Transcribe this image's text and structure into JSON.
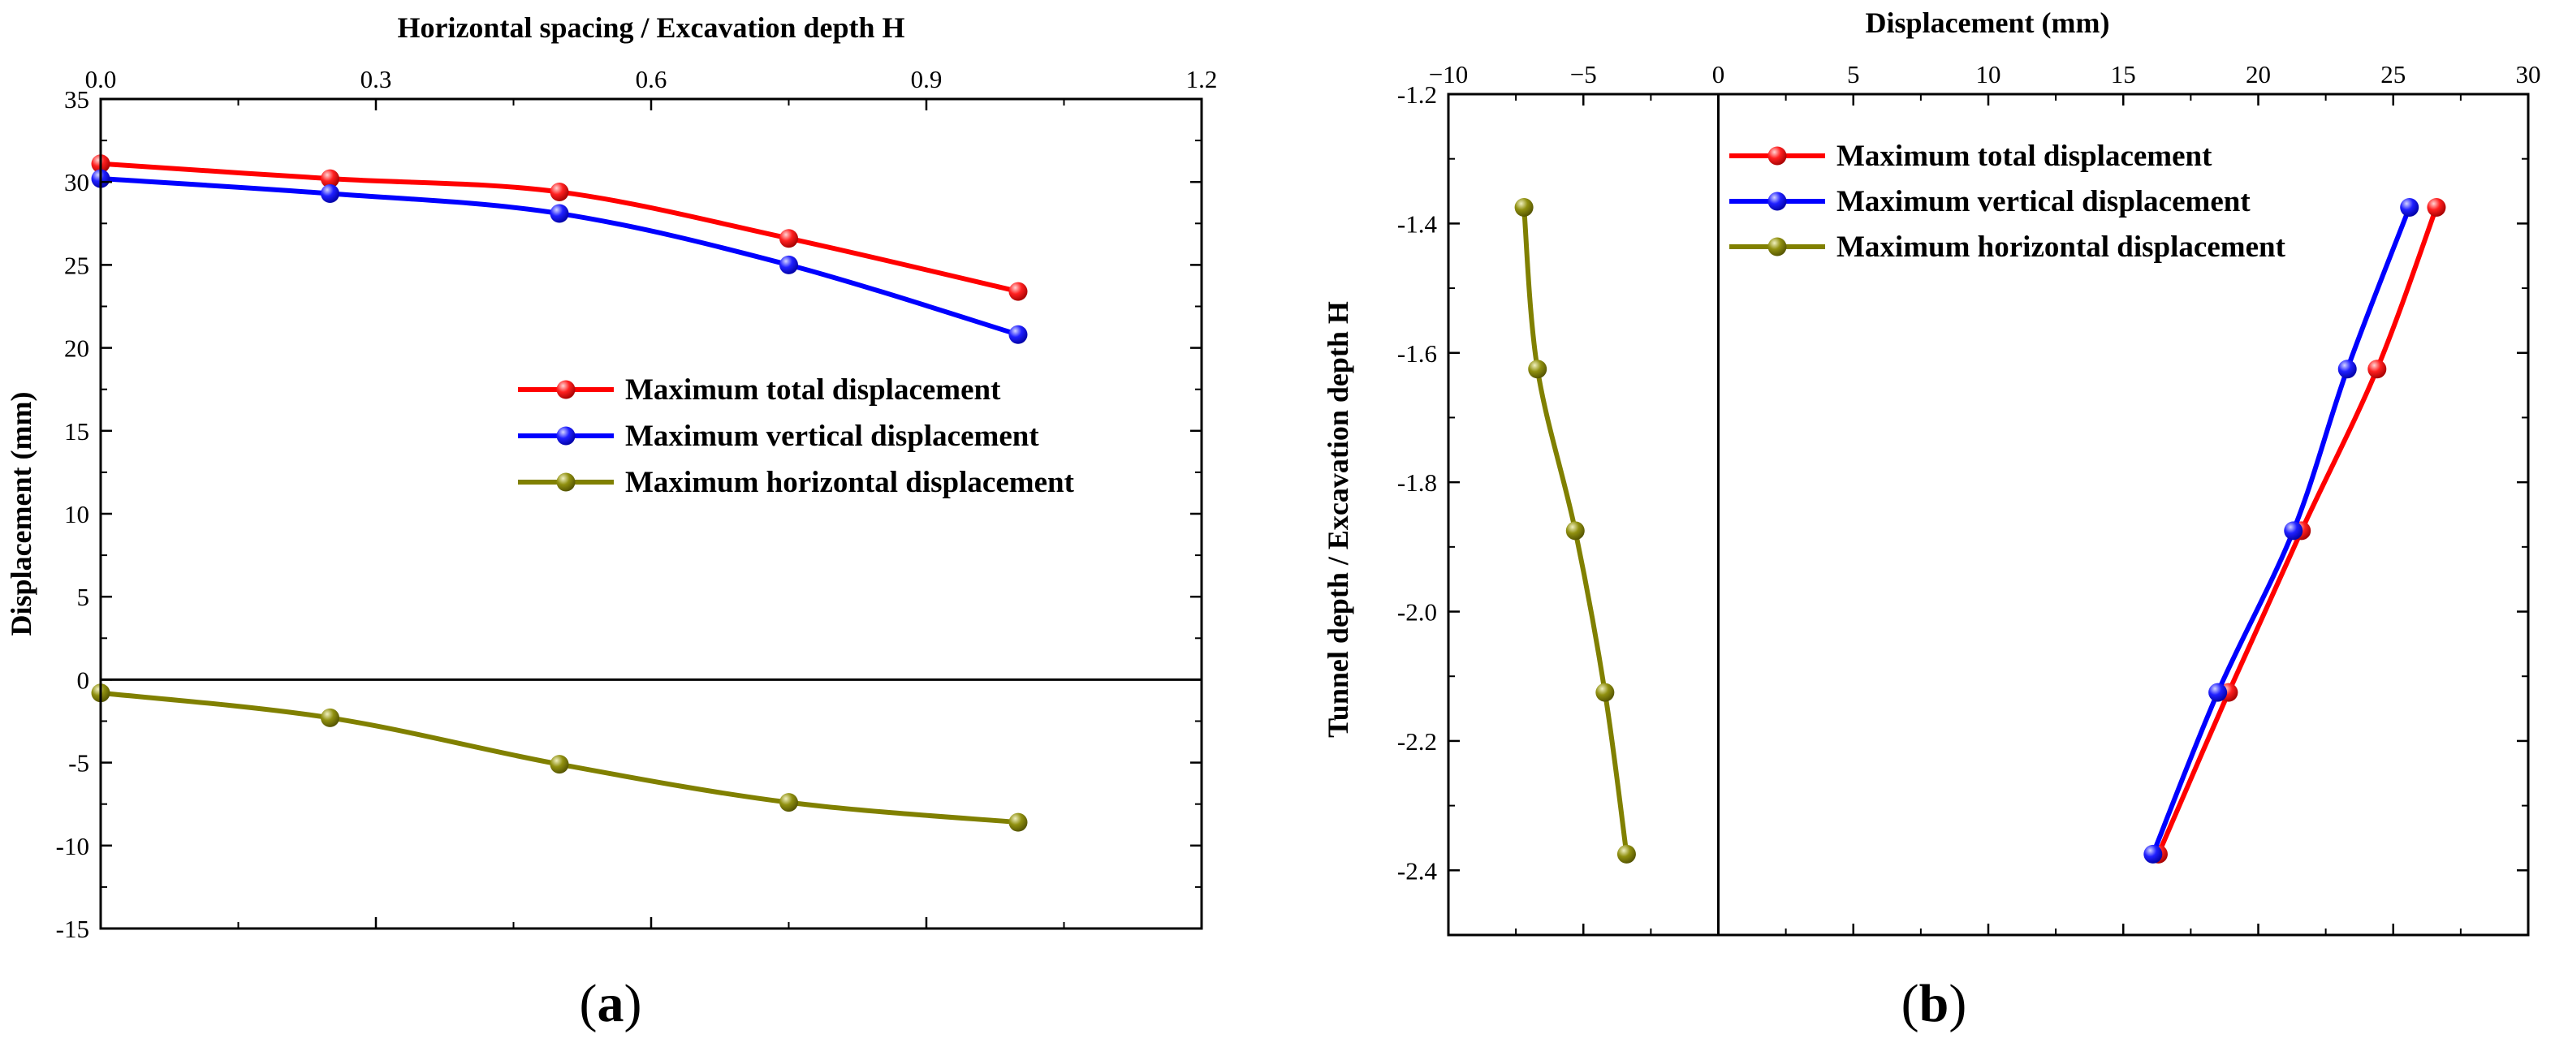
{
  "panels": {
    "a": {
      "label_open": "(",
      "label_letter": "a",
      "label_close": ")",
      "xlabel": "Horizontal spacing / Excavation depth H",
      "ylabel": "Displacement (mm)",
      "xlim": [
        0.0,
        1.2
      ],
      "ylim": [
        -15,
        35
      ],
      "xticks": [
        "0.0",
        "0.3",
        "0.6",
        "0.9",
        "1.2"
      ],
      "yticks": [
        "-15",
        "-10",
        "-5",
        "0",
        "5",
        "10",
        "15",
        "20",
        "25",
        "30",
        "35"
      ]
    },
    "b": {
      "label_open": "(",
      "label_letter": "b",
      "label_close": ")",
      "xlabel": "Displacement (mm)",
      "ylabel": "Tunnel depth / Excavation depth H",
      "xlim": [
        -10,
        30
      ],
      "ylim": [
        -2.5,
        -1.2
      ],
      "xticks": [
        "−10",
        "−5",
        "0",
        "5",
        "10",
        "15",
        "20",
        "25",
        "30"
      ],
      "yticks": [
        "-1.2",
        "-1.4",
        "-1.6",
        "-1.8",
        "-2.0",
        "-2.2",
        "-2.4"
      ]
    }
  },
  "colors": {
    "total": "#ff0000",
    "vertical": "#0000ff",
    "horizontal": "#808000"
  },
  "chart_data": [
    {
      "type": "line",
      "panel": "a",
      "title": "",
      "xlabel": "Horizontal spacing / Excavation depth H",
      "ylabel": "Displacement (mm)",
      "xlim": [
        0.0,
        1.2
      ],
      "ylim": [
        -15,
        35
      ],
      "legend": "center-right",
      "series": [
        {
          "name": "Maximum total displacement",
          "color": "#ff0000",
          "x": [
            0.0,
            0.25,
            0.5,
            0.75,
            1.0
          ],
          "y": [
            31.1,
            30.2,
            29.4,
            26.6,
            23.4
          ]
        },
        {
          "name": "Maximum vertical displacement",
          "color": "#0000ff",
          "x": [
            0.0,
            0.25,
            0.5,
            0.75,
            1.0
          ],
          "y": [
            30.2,
            29.3,
            28.1,
            25.0,
            20.8
          ]
        },
        {
          "name": "Maximum horizontal displacement",
          "color": "#808000",
          "x": [
            0.0,
            0.25,
            0.5,
            0.75,
            1.0
          ],
          "y": [
            -0.8,
            -2.3,
            -5.1,
            -7.4,
            -8.6
          ]
        }
      ]
    },
    {
      "type": "line",
      "panel": "b",
      "title": "",
      "xlabel": "Displacement (mm)",
      "ylabel": "Tunnel depth / Excavation depth H",
      "xlim": [
        -10,
        30
      ],
      "ylim": [
        -2.5,
        -1.2
      ],
      "legend": "top-right",
      "series": [
        {
          "name": "Maximum total displacement",
          "color": "#ff0000",
          "x": [
            26.6,
            24.4,
            21.6,
            18.9,
            16.3
          ],
          "y": [
            -1.375,
            -1.625,
            -1.875,
            -2.125,
            -2.375
          ]
        },
        {
          "name": "Maximum vertical displacement",
          "color": "#0000ff",
          "x": [
            25.6,
            23.3,
            21.3,
            18.5,
            16.1
          ],
          "y": [
            -1.375,
            -1.625,
            -1.875,
            -2.125,
            -2.375
          ]
        },
        {
          "name": "Maximum horizontal displacement",
          "color": "#808000",
          "x": [
            -7.2,
            -6.7,
            -5.3,
            -4.2,
            -3.4
          ],
          "y": [
            -1.375,
            -1.625,
            -1.875,
            -2.125,
            -2.375
          ]
        }
      ]
    }
  ]
}
